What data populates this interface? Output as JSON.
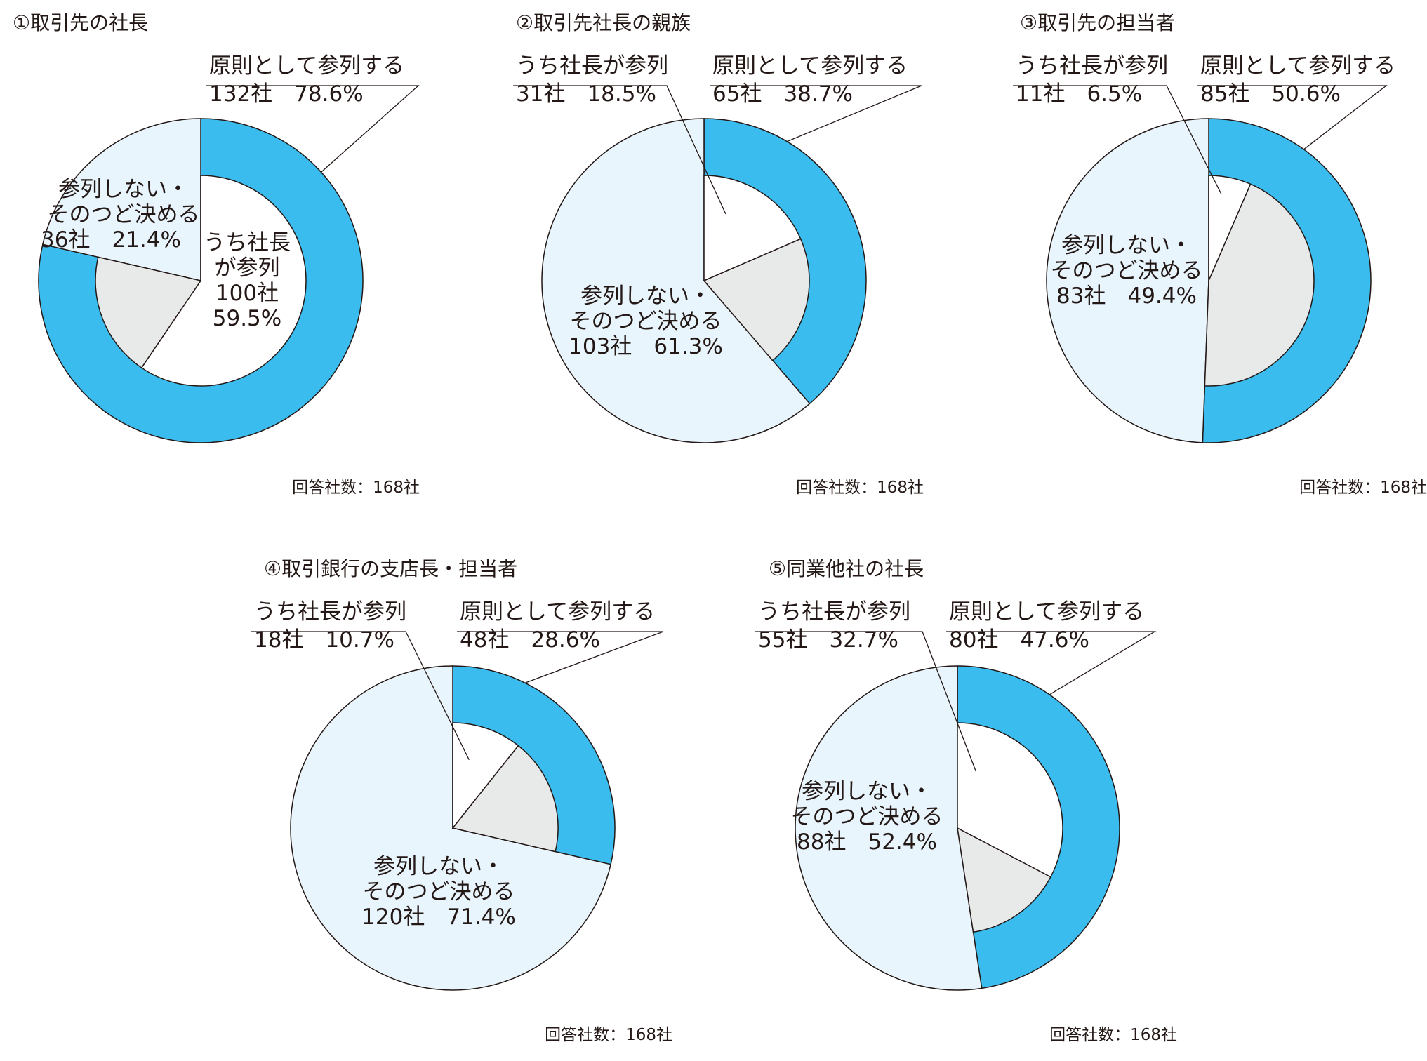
{
  "colors": {
    "attend": "#3bbcee",
    "president_attend": "#ffffff",
    "other_attend": "#e8eaea",
    "not_attend": "#e9f5fd",
    "stroke": "#231815"
  },
  "chart_data": [
    {
      "type": "pie",
      "title": "①取引先の社長",
      "note": "回答社数：168社",
      "total": 168,
      "attend": {
        "label": "原則として参列する",
        "value_text": "132社　78.6%",
        "count": 132,
        "percent": 78.6
      },
      "president": {
        "label": "うち社長が参列",
        "value_text": "100社　59.5%",
        "count": 100,
        "percent": 59.5
      },
      "not_attend": {
        "label": "参列しない・そのつど決める",
        "value_text": "36社　21.4%",
        "count": 36,
        "percent": 21.4
      }
    },
    {
      "type": "pie",
      "title": "②取引先社長の親族",
      "note": "回答社数：168社",
      "total": 168,
      "attend": {
        "label": "原則として参列する",
        "value_text": "65社　38.7%",
        "count": 65,
        "percent": 38.7
      },
      "president": {
        "label": "うち社長が参列",
        "value_text": "31社　18.5%",
        "count": 31,
        "percent": 18.5
      },
      "not_attend": {
        "label": "参列しない・そのつど決める",
        "value_text": "103社　61.3%",
        "count": 103,
        "percent": 61.3
      }
    },
    {
      "type": "pie",
      "title": "③取引先の担当者",
      "note": "回答社数：168社",
      "total": 168,
      "attend": {
        "label": "原則として参列する",
        "value_text": "85社　50.6%",
        "count": 85,
        "percent": 50.6
      },
      "president": {
        "label": "うち社長が参列",
        "value_text": "11社　6.5%",
        "count": 11,
        "percent": 6.5
      },
      "not_attend": {
        "label": "参列しない・そのつど決める",
        "value_text": "83社　49.4%",
        "count": 83,
        "percent": 49.4
      }
    },
    {
      "type": "pie",
      "title": "④取引銀行の支店長・担当者",
      "note": "回答社数：168社",
      "total": 168,
      "attend": {
        "label": "原則として参列する",
        "value_text": "48社　28.6%",
        "count": 48,
        "percent": 28.6
      },
      "president": {
        "label": "うち社長が参列",
        "value_text": "18社　10.7%",
        "count": 18,
        "percent": 10.7
      },
      "not_attend": {
        "label": "参列しない・そのつど決める",
        "value_text": "120社　71.4%",
        "count": 120,
        "percent": 71.4
      }
    },
    {
      "type": "pie",
      "title": "⑤同業他社の社長",
      "note": "回答社数：168社",
      "total": 168,
      "attend": {
        "label": "原則として参列する",
        "value_text": "80社　47.6%",
        "count": 80,
        "percent": 47.6
      },
      "president": {
        "label": "うち社長が参列",
        "value_text": "55社　32.7%",
        "count": 55,
        "percent": 32.7
      },
      "not_attend": {
        "label": "参列しない・そのつど決める",
        "value_text": "88社　52.4%",
        "count": 88,
        "percent": 52.4
      }
    }
  ]
}
